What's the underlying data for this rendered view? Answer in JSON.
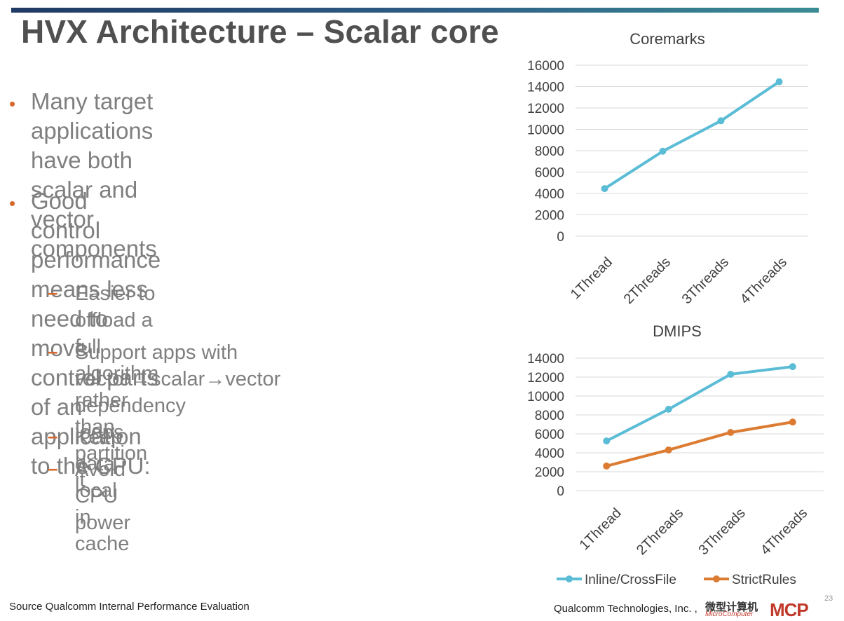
{
  "slide": {
    "title": "HVX Architecture – Scalar core",
    "bullet_marker": "•",
    "sub_marker": "–",
    "bullets": [
      {
        "lines": [
          "Many target applications have both",
          "scalar and vector components"
        ]
      },
      {
        "lines": [
          "Good control performance means less",
          "need to move control parts of an",
          "application to the CPU:"
        ]
      }
    ],
    "sub_bullets": [
      {
        "lines": [
          "Easier to offload a full algorithm rather",
          "than partition it"
        ]
      },
      {
        "lines": [
          "Support apps with",
          "vector→scalar→vector dependency",
          "loops"
        ]
      },
      {
        "lines": [
          "Keep data local in cache"
        ]
      },
      {
        "lines": [
          "Avoid CPU power"
        ]
      }
    ],
    "footer_source": "Source Qualcomm Internal Performance Evaluation",
    "footer_company": "Qualcomm Technologies, Inc. ,",
    "page_number": "23",
    "watermark": {
      "cn": "微型计算机",
      "en": "MicroComputer",
      "logo": "MCP"
    }
  },
  "chart_data": [
    {
      "type": "line",
      "title": "Coremarks",
      "categories": [
        "1Thread",
        "2Threads",
        "3Threads",
        "4Threads"
      ],
      "ylim": [
        0,
        16000
      ],
      "yticks": [
        0,
        2000,
        4000,
        6000,
        8000,
        10000,
        12000,
        14000,
        16000
      ],
      "grid": true,
      "series": [
        {
          "values": [
            4450,
            7950,
            10800,
            14450
          ],
          "color": "#5bbcd6"
        }
      ]
    },
    {
      "type": "line",
      "title": "DMIPS",
      "categories": [
        "1Thread",
        "2Threads",
        "3Threads",
        "4Threads"
      ],
      "ylim": [
        0,
        14000
      ],
      "yticks": [
        0,
        2000,
        4000,
        6000,
        8000,
        10000,
        12000,
        14000
      ],
      "grid": true,
      "legend": "bottom",
      "series": [
        {
          "name": "Inline/CrossFile",
          "values": [
            5250,
            8600,
            12300,
            13100
          ],
          "color": "#5bbcd6"
        },
        {
          "name": "StrictRules",
          "values": [
            2600,
            4300,
            6150,
            7250
          ],
          "color": "#dc7b32"
        }
      ]
    }
  ]
}
